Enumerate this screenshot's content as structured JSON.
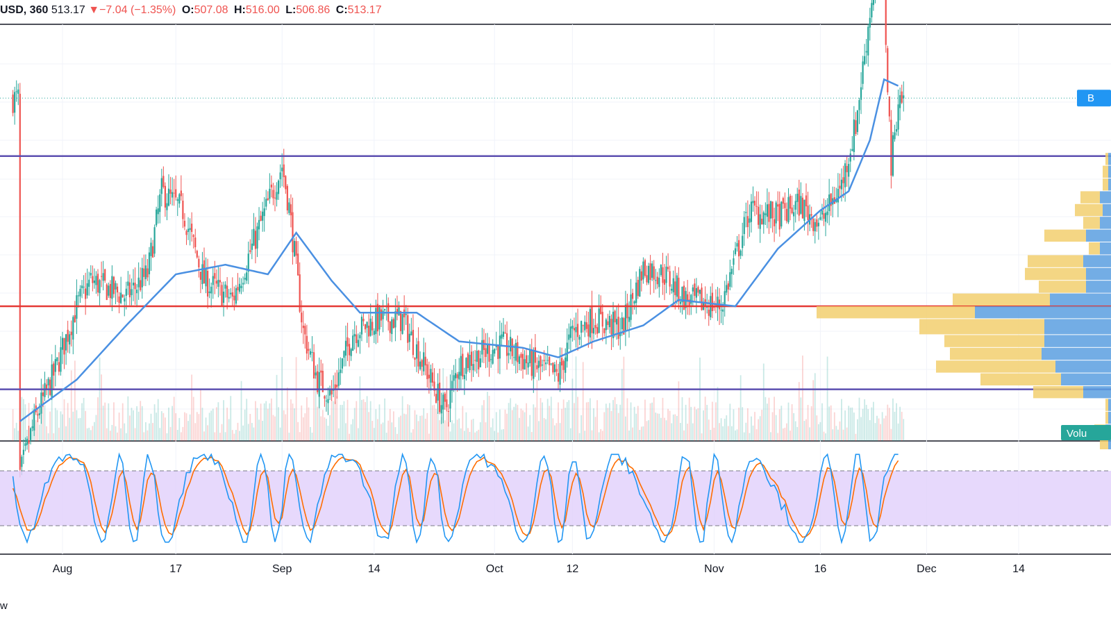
{
  "legend": {
    "symbol": "USD, 360",
    "last": "513.17",
    "arrow": "▼",
    "change": "−7.04 (−1.35%)",
    "o_label": "O:",
    "o_value": "507.08",
    "h_label": "H:",
    "h_value": "516.00",
    "l_label": "L:",
    "l_value": "506.86",
    "c_label": "C:",
    "c_value": "513.17"
  },
  "price_badge": "B",
  "volume_badge": "Volu",
  "watermark": "w",
  "colors": {
    "up": "#26a69a",
    "down": "#ef5350",
    "ma": "#4a90e2",
    "level_purple": "#5c4fb0",
    "level_red": "#e53935",
    "stoch_k": "#2196f3",
    "stoch_d": "#ff6d00",
    "stoch_band": "#e1cffb",
    "vp_up": "#5b9fe0",
    "vp_down": "#f2cf6e"
  },
  "chart_data": {
    "type": "candlestick",
    "x_tick_labels": [
      "Aug",
      "17",
      "Sep",
      "14",
      "Oct",
      "12",
      "Nov",
      "16",
      "Dec",
      "14"
    ],
    "price_series": {
      "name": "",
      "anchors": [
        {
          "date": "Jul 26",
          "price": 395
        },
        {
          "date": "Jul 28",
          "price": 412
        },
        {
          "date": "Jul 31",
          "price": 428
        },
        {
          "date": "Aug 3",
          "price": 448
        },
        {
          "date": "Aug 5",
          "price": 456
        },
        {
          "date": "Aug 10",
          "price": 451
        },
        {
          "date": "Aug 13",
          "price": 458
        },
        {
          "date": "Aug 15",
          "price": 484
        },
        {
          "date": "Aug 18",
          "price": 478
        },
        {
          "date": "Aug 21",
          "price": 456
        },
        {
          "date": "Aug 25",
          "price": 450
        },
        {
          "date": "Aug 28",
          "price": 468
        },
        {
          "date": "Sep 1",
          "price": 492
        },
        {
          "date": "Sep 2",
          "price": 479
        },
        {
          "date": "Sep 4",
          "price": 440
        },
        {
          "date": "Sep 6",
          "price": 425
        },
        {
          "date": "Sep 8",
          "price": 420
        },
        {
          "date": "Sep 11",
          "price": 440
        },
        {
          "date": "Sep 15",
          "price": 444
        },
        {
          "date": "Sep 18",
          "price": 444
        },
        {
          "date": "Sep 22",
          "price": 425
        },
        {
          "date": "Sep 24",
          "price": 415
        },
        {
          "date": "Sep 26",
          "price": 430
        },
        {
          "date": "Oct 2",
          "price": 436
        },
        {
          "date": "Oct 6",
          "price": 430
        },
        {
          "date": "Oct 10",
          "price": 426
        },
        {
          "date": "Oct 12",
          "price": 440
        },
        {
          "date": "Oct 15",
          "price": 444
        },
        {
          "date": "Oct 19",
          "price": 441
        },
        {
          "date": "Oct 22",
          "price": 460
        },
        {
          "date": "Oct 25",
          "price": 458
        },
        {
          "date": "Oct 28",
          "price": 450
        },
        {
          "date": "Nov 2",
          "price": 448
        },
        {
          "date": "Nov 6",
          "price": 478
        },
        {
          "date": "Nov 10",
          "price": 476
        },
        {
          "date": "Nov 13",
          "price": 480
        },
        {
          "date": "Nov 16",
          "price": 474
        },
        {
          "date": "Nov 19",
          "price": 486
        },
        {
          "date": "Nov 21",
          "price": 505
        },
        {
          "date": "Nov 23",
          "price": 540
        },
        {
          "date": "Nov 24",
          "price": 556
        },
        {
          "date": "Nov 25",
          "price": 545
        },
        {
          "date": "Nov 26",
          "price": 492
        },
        {
          "date": "Nov 27",
          "price": 513
        }
      ]
    },
    "moving_average": {
      "name": "",
      "anchors": [
        {
          "date": "Jul 26",
          "price": 412
        },
        {
          "date": "Aug 3",
          "price": 425
        },
        {
          "date": "Aug 10",
          "price": 442
        },
        {
          "date": "Aug 17",
          "price": 458
        },
        {
          "date": "Aug 24",
          "price": 461
        },
        {
          "date": "Aug 30",
          "price": 458
        },
        {
          "date": "Sep 3",
          "price": 471
        },
        {
          "date": "Sep 8",
          "price": 456
        },
        {
          "date": "Sep 12",
          "price": 446
        },
        {
          "date": "Sep 20",
          "price": 446
        },
        {
          "date": "Sep 26",
          "price": 437
        },
        {
          "date": "Oct 5",
          "price": 435
        },
        {
          "date": "Oct 10",
          "price": 432
        },
        {
          "date": "Oct 15",
          "price": 437
        },
        {
          "date": "Oct 22",
          "price": 442
        },
        {
          "date": "Oct 27",
          "price": 450
        },
        {
          "date": "Nov 4",
          "price": 448
        },
        {
          "date": "Nov 10",
          "price": 466
        },
        {
          "date": "Nov 16",
          "price": 478
        },
        {
          "date": "Nov 20",
          "price": 484
        },
        {
          "date": "Nov 23",
          "price": 500
        },
        {
          "date": "Nov 25",
          "price": 519
        },
        {
          "date": "Nov 27",
          "price": 517
        }
      ]
    },
    "horizontal_levels": [
      {
        "price": 422,
        "color": "purple"
      },
      {
        "price": 448,
        "color": "red"
      },
      {
        "price": 495,
        "color": "purple"
      }
    ],
    "last_price": 513.17,
    "stochastic": {
      "upper_band": 80,
      "lower_band": 20,
      "range": [
        0,
        100
      ]
    },
    "volume_profile": {
      "rows": [
        {
          "price_from": 403,
          "price_to": 407,
          "up": 1,
          "down": 3
        },
        {
          "price_from": 407,
          "price_to": 411,
          "up": 2,
          "down": 4
        },
        {
          "price_from": 411,
          "price_to": 415,
          "up": 1,
          "down": 1
        },
        {
          "price_from": 415,
          "price_to": 419,
          "up": 1,
          "down": 1
        },
        {
          "price_from": 419,
          "price_to": 423,
          "up": 10,
          "down": 18
        },
        {
          "price_from": 423,
          "price_to": 427,
          "up": 18,
          "down": 29
        },
        {
          "price_from": 427,
          "price_to": 431,
          "up": 20,
          "down": 43
        },
        {
          "price_from": 431,
          "price_to": 435,
          "up": 25,
          "down": 33
        },
        {
          "price_from": 435,
          "price_to": 439,
          "up": 24,
          "down": 36
        },
        {
          "price_from": 439,
          "price_to": 444,
          "up": 24,
          "down": 45
        },
        {
          "price_from": 444,
          "price_to": 448,
          "up": 49,
          "down": 57
        },
        {
          "price_from": 448,
          "price_to": 452,
          "up": 22,
          "down": 35
        },
        {
          "price_from": 452,
          "price_to": 456,
          "up": 9,
          "down": 17
        },
        {
          "price_from": 456,
          "price_to": 460,
          "up": 9,
          "down": 22
        },
        {
          "price_from": 460,
          "price_to": 464,
          "up": 10,
          "down": 20
        },
        {
          "price_from": 464,
          "price_to": 468,
          "up": 4,
          "down": 4
        },
        {
          "price_from": 468,
          "price_to": 472,
          "up": 9,
          "down": 15
        },
        {
          "price_from": 472,
          "price_to": 476,
          "up": 4,
          "down": 6
        },
        {
          "price_from": 476,
          "price_to": 480,
          "up": 3,
          "down": 10
        },
        {
          "price_from": 480,
          "price_to": 484,
          "up": 4,
          "down": 7
        },
        {
          "price_from": 484,
          "price_to": 488,
          "up": 1,
          "down": 2
        },
        {
          "price_from": 488,
          "price_to": 492,
          "up": 1,
          "down": 2
        },
        {
          "price_from": 492,
          "price_to": 496,
          "up": 1,
          "down": 1
        }
      ]
    }
  }
}
